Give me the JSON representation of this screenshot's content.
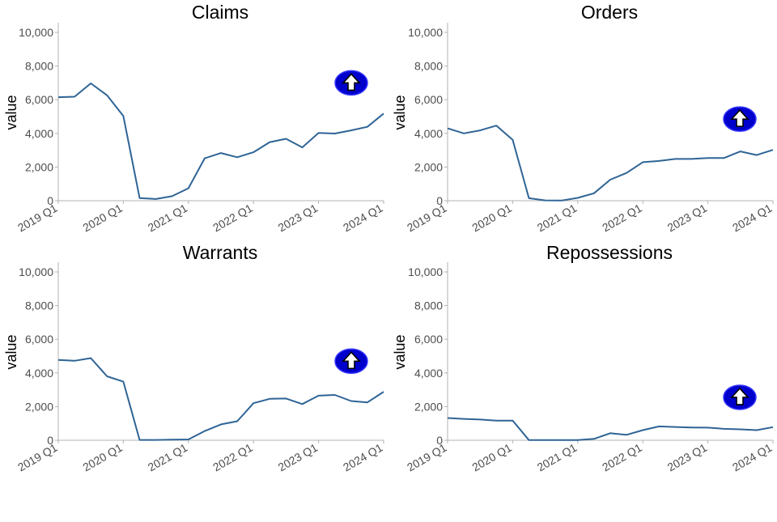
{
  "colors": {
    "line": "#2f6496",
    "axis": "#b3b3b3",
    "arrow_fill": "#0000cc",
    "arrow_icon": "#ffffff",
    "text": "#000000",
    "tick_text": "#4d4d4d"
  },
  "chart_data": [
    {
      "type": "line",
      "title": "Claims",
      "xlabel": "",
      "ylabel": "value",
      "x": [
        "2019 Q1",
        "2019 Q2",
        "2019 Q3",
        "2019 Q4",
        "2020 Q1",
        "2020 Q2",
        "2020 Q3",
        "2020 Q4",
        "2021 Q1",
        "2021 Q2",
        "2021 Q3",
        "2021 Q4",
        "2022 Q1",
        "2022 Q2",
        "2022 Q3",
        "2022 Q4",
        "2023 Q1",
        "2023 Q2",
        "2023 Q3",
        "2023 Q4",
        "2024 Q1"
      ],
      "values": [
        6150,
        6180,
        6970,
        6260,
        5030,
        160,
        100,
        270,
        740,
        2520,
        2830,
        2580,
        2880,
        3480,
        3680,
        3170,
        4030,
        3990,
        4180,
        4390,
        5180
      ],
      "x_tick_labels": [
        "2019 Q1",
        "2020 Q1",
        "2021 Q1",
        "2022 Q1",
        "2023 Q1",
        "2024 Q1"
      ],
      "y_tick_labels": [
        "0",
        "2,000",
        "4,000",
        "6,000",
        "8,000",
        "10,000"
      ],
      "ylim": [
        0,
        10000
      ],
      "trend_icon": "up-arrow-icon",
      "trend_icon_value": 7000
    },
    {
      "type": "line",
      "title": "Orders",
      "xlabel": "",
      "ylabel": "value",
      "x": [
        "2019 Q1",
        "2019 Q2",
        "2019 Q3",
        "2019 Q4",
        "2020 Q1",
        "2020 Q2",
        "2020 Q3",
        "2020 Q4",
        "2021 Q1",
        "2021 Q2",
        "2021 Q3",
        "2021 Q4",
        "2022 Q1",
        "2022 Q2",
        "2022 Q3",
        "2022 Q4",
        "2023 Q1",
        "2023 Q2",
        "2023 Q3",
        "2023 Q4",
        "2024 Q1"
      ],
      "values": [
        4300,
        4000,
        4180,
        4460,
        3620,
        150,
        20,
        10,
        170,
        440,
        1250,
        1650,
        2290,
        2360,
        2480,
        2480,
        2540,
        2540,
        2930,
        2710,
        3020
      ],
      "x_tick_labels": [
        "2019 Q1",
        "2020 Q1",
        "2021 Q1",
        "2022 Q1",
        "2023 Q1",
        "2024 Q1"
      ],
      "y_tick_labels": [
        "0",
        "2,000",
        "4,000",
        "6,000",
        "8,000",
        "10,000"
      ],
      "ylim": [
        0,
        10000
      ],
      "trend_icon": "up-arrow-icon",
      "trend_icon_value": 4850
    },
    {
      "type": "line",
      "title": "Warrants",
      "xlabel": "",
      "ylabel": "value",
      "x": [
        "2019 Q1",
        "2019 Q2",
        "2019 Q3",
        "2019 Q4",
        "2020 Q1",
        "2020 Q2",
        "2020 Q3",
        "2020 Q4",
        "2021 Q1",
        "2021 Q2",
        "2021 Q3",
        "2021 Q4",
        "2022 Q1",
        "2022 Q2",
        "2022 Q3",
        "2022 Q4",
        "2023 Q1",
        "2023 Q2",
        "2023 Q3",
        "2023 Q4",
        "2024 Q1"
      ],
      "values": [
        4770,
        4720,
        4880,
        3800,
        3480,
        20,
        20,
        40,
        50,
        550,
        940,
        1130,
        2200,
        2460,
        2480,
        2150,
        2650,
        2690,
        2330,
        2250,
        2880
      ],
      "x_tick_labels": [
        "2019 Q1",
        "2020 Q1",
        "2021 Q1",
        "2022 Q1",
        "2023 Q1",
        "2024 Q1"
      ],
      "y_tick_labels": [
        "0",
        "2,000",
        "4,000",
        "6,000",
        "8,000",
        "10,000"
      ],
      "ylim": [
        0,
        10000
      ],
      "trend_icon": "up-arrow-icon",
      "trend_icon_value": 4700
    },
    {
      "type": "line",
      "title": "Repossessions",
      "xlabel": "",
      "ylabel": "value",
      "x": [
        "2019 Q1",
        "2019 Q2",
        "2019 Q3",
        "2019 Q4",
        "2020 Q1",
        "2020 Q2",
        "2020 Q3",
        "2020 Q4",
        "2021 Q1",
        "2021 Q2",
        "2021 Q3",
        "2021 Q4",
        "2022 Q1",
        "2022 Q2",
        "2022 Q3",
        "2022 Q4",
        "2023 Q1",
        "2023 Q2",
        "2023 Q3",
        "2023 Q4",
        "2024 Q1"
      ],
      "values": [
        1320,
        1270,
        1230,
        1170,
        1170,
        10,
        10,
        10,
        10,
        80,
        420,
        320,
        600,
        820,
        790,
        760,
        750,
        680,
        650,
        600,
        780
      ],
      "x_tick_labels": [
        "2019 Q1",
        "2020 Q1",
        "2021 Q1",
        "2022 Q1",
        "2023 Q1",
        "2024 Q1"
      ],
      "y_tick_labels": [
        "0",
        "2,000",
        "4,000",
        "6,000",
        "8,000",
        "10,000"
      ],
      "ylim": [
        0,
        10000
      ],
      "trend_icon": "up-arrow-icon",
      "trend_icon_value": 2550
    }
  ]
}
